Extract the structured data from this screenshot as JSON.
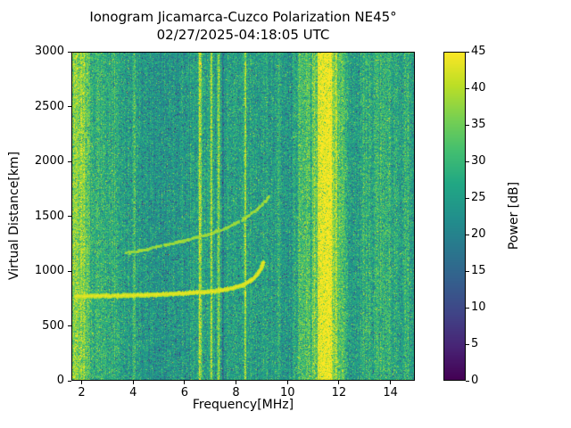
{
  "chart_data": {
    "type": "heatmap",
    "title": "Ionogram Jicamarca-Cuzco Polarization NE45°",
    "subtitle": "02/27/2025-04:18:05 UTC",
    "xlabel": "Frequency[MHz]",
    "ylabel": "Virtual Distance[km]",
    "xlim": [
      1.6,
      14.95
    ],
    "ylim": [
      0,
      3000
    ],
    "xticks": [
      2,
      4,
      6,
      8,
      10,
      12,
      14
    ],
    "yticks": [
      0,
      500,
      1000,
      1500,
      2000,
      2500,
      3000
    ],
    "grid": false,
    "colorbar": {
      "label": "Power [dB]",
      "min": 0,
      "max": 45,
      "ticks": [
        0,
        5,
        10,
        15,
        20,
        25,
        30,
        35,
        40,
        45
      ],
      "colormap": "viridis",
      "viridis_stops": [
        "#440154",
        "#482475",
        "#414487",
        "#355f8d",
        "#2a788e",
        "#21918c",
        "#22a884",
        "#44bf70",
        "#7ad151",
        "#bddf26",
        "#fde725"
      ]
    },
    "background": {
      "mean_db": 26,
      "pixel_std_db": 4.2,
      "column_std_db": 1.3,
      "dark_speckle_prob": 0.06,
      "dark_speckle_db": -11,
      "bright_speckle_prob": 0.015,
      "bright_speckle_db": 6
    },
    "rfi_bands": [
      {
        "freq_mhz": 1.85,
        "width_mhz": 0.55,
        "power_db": 10
      },
      {
        "freq_mhz": 2.5,
        "width_mhz": 0.9,
        "power_db": 3.5
      },
      {
        "freq_mhz": 3.3,
        "width_mhz": 0.3,
        "power_db": 2.5
      },
      {
        "freq_mhz": 4.05,
        "width_mhz": 0.1,
        "power_db": 6
      },
      {
        "freq_mhz": 5.2,
        "width_mhz": 2.0,
        "power_db": -1.5
      },
      {
        "freq_mhz": 6.62,
        "width_mhz": 0.09,
        "power_db": 14
      },
      {
        "freq_mhz": 7.05,
        "width_mhz": 0.08,
        "power_db": 12
      },
      {
        "freq_mhz": 7.32,
        "width_mhz": 0.06,
        "power_db": 11
      },
      {
        "freq_mhz": 7.5,
        "width_mhz": 0.05,
        "power_db": -7
      },
      {
        "freq_mhz": 8.35,
        "width_mhz": 0.07,
        "power_db": 13
      },
      {
        "freq_mhz": 9.65,
        "width_mhz": 0.15,
        "power_db": 4
      },
      {
        "freq_mhz": 9.95,
        "width_mhz": 0.8,
        "power_db": -1.5
      },
      {
        "freq_mhz": 10.65,
        "width_mhz": 0.5,
        "power_db": 6
      },
      {
        "freq_mhz": 11.45,
        "width_mhz": 0.55,
        "power_db": 19
      },
      {
        "freq_mhz": 12.05,
        "width_mhz": 0.35,
        "power_db": 7
      },
      {
        "freq_mhz": 13.0,
        "width_mhz": 0.2,
        "power_db": 3
      },
      {
        "freq_mhz": 13.7,
        "width_mhz": 0.6,
        "power_db": 3.5
      },
      {
        "freq_mhz": 14.6,
        "width_mhz": 0.2,
        "power_db": 3
      }
    ],
    "echo_traces": [
      {
        "name": "F-region first-hop trace",
        "power_db": 43,
        "thickness_px": 3,
        "density": 1.0,
        "points_mhz_km": [
          [
            1.75,
            775
          ],
          [
            3.0,
            778
          ],
          [
            4.0,
            782
          ],
          [
            5.0,
            790
          ],
          [
            6.0,
            801
          ],
          [
            6.8,
            812
          ],
          [
            7.4,
            828
          ],
          [
            7.9,
            850
          ],
          [
            8.3,
            880
          ],
          [
            8.6,
            922
          ],
          [
            8.8,
            968
          ],
          [
            8.95,
            1025
          ],
          [
            9.05,
            1085
          ]
        ]
      },
      {
        "name": "F-region second trace",
        "power_db": 39,
        "thickness_px": 2,
        "density": 0.5,
        "points_mhz_km": [
          [
            3.7,
            1165
          ],
          [
            4.5,
            1200
          ],
          [
            5.3,
            1242
          ],
          [
            6.1,
            1287
          ],
          [
            6.9,
            1335
          ],
          [
            7.6,
            1395
          ],
          [
            8.2,
            1465
          ],
          [
            8.7,
            1545
          ],
          [
            9.1,
            1630
          ],
          [
            9.3,
            1695
          ]
        ]
      }
    ]
  }
}
